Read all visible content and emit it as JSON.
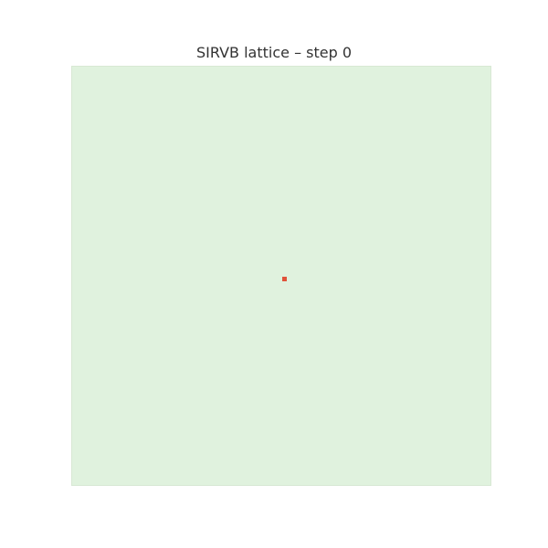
{
  "title": "SIRVB lattice – step 0",
  "colors": {
    "background": "#ffffff",
    "susceptible": "#e0f2de",
    "infected": "#e0533a"
  }
}
